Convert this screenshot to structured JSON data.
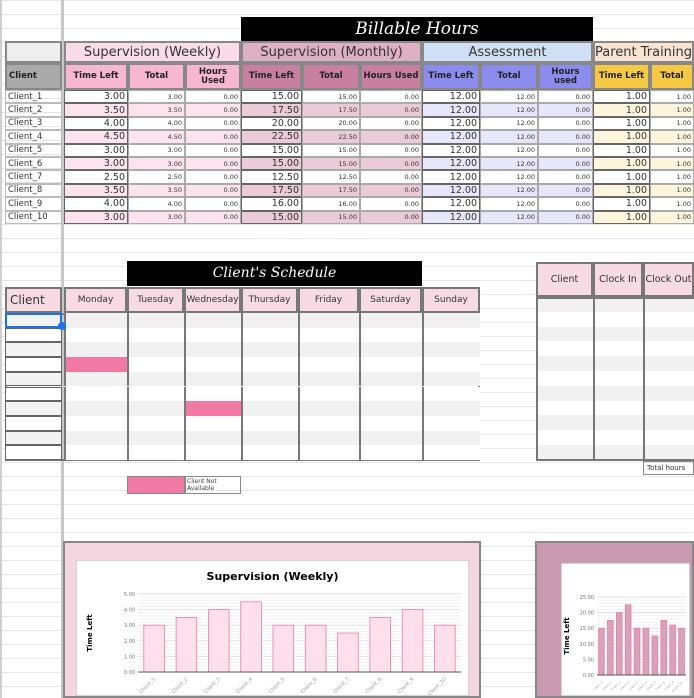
{
  "billable": {
    "title": "Billable Hours",
    "client_header": "Client",
    "groups": [
      {
        "name": "Supervision (Weekly)",
        "cols": [
          "Time Left",
          "Total",
          "Hours Used"
        ],
        "head": "#fadbe8",
        "sub": "#f7b7d0",
        "rowA": "#ffffff",
        "rowB": "#fde3ee",
        "time_left": [
          "3.00",
          "3.50",
          "4.00",
          "4.50",
          "3.00",
          "3.00",
          "2.50",
          "3.50",
          "4.00",
          "3.00"
        ],
        "total": [
          "3.00",
          "3.50",
          "4.00",
          "4.50",
          "3.00",
          "3.00",
          "2.50",
          "3.50",
          "4.00",
          "3.00"
        ],
        "used": [
          "0.00",
          "0.00",
          "0.00",
          "0.00",
          "0.00",
          "0.00",
          "0.00",
          "0.00",
          "0.00",
          "0.00"
        ]
      },
      {
        "name": "Supervision (Monthly)",
        "cols": [
          "Time Left",
          "Total",
          "Hours Used"
        ],
        "head": "#ddb1c3",
        "sub": "#c7809f",
        "rowA": "#ffffff",
        "rowB": "#ebcbd7",
        "time_left": [
          "15.00",
          "17.50",
          "20.00",
          "22.50",
          "15.00",
          "15.00",
          "12.50",
          "17.50",
          "16.00",
          "15.00"
        ],
        "total": [
          "15.00",
          "17.50",
          "20.00",
          "22.50",
          "15.00",
          "15.00",
          "12.50",
          "17.50",
          "16.00",
          "15.00"
        ],
        "used": [
          "0.00",
          "0.00",
          "0.00",
          "0.00",
          "0.00",
          "0.00",
          "0.00",
          "0.00",
          "0.00",
          "0.00"
        ]
      },
      {
        "name": "Assessment",
        "cols": [
          "Time Left",
          "Total",
          "Hours used"
        ],
        "head": "#cfe0f5",
        "sub": "#8c8cef",
        "rowA": "#ffffff",
        "rowB": "#e7e6fb",
        "time_left": [
          "12.00",
          "12.00",
          "12.00",
          "12.00",
          "12.00",
          "12.00",
          "12.00",
          "12.00",
          "12.00",
          "12.00"
        ],
        "total": [
          "12.00",
          "12.00",
          "12.00",
          "12.00",
          "12.00",
          "12.00",
          "12.00",
          "12.00",
          "12.00",
          "12.00"
        ],
        "used": [
          "0.00",
          "0.00",
          "0.00",
          "0.00",
          "0.00",
          "0.00",
          "0.00",
          "0.00",
          "0.00",
          "0.00"
        ]
      },
      {
        "name": "Parent Training",
        "cols": [
          "Time Left",
          "Total"
        ],
        "head": "#fbe3d2",
        "sub": "#f6c945",
        "rowA": "#ffffff",
        "rowB": "#fdf6dc",
        "time_left": [
          "1.00",
          "1.00",
          "1.00",
          "1.00",
          "1.00",
          "1.00",
          "1.00",
          "1.00",
          "1.00",
          "1.00"
        ],
        "total": [
          "1.00",
          "1.00",
          "1.00",
          "1.00",
          "1.00",
          "1.00",
          "1.00",
          "1.00",
          "1.00",
          "1.00"
        ]
      }
    ],
    "clients": [
      "Client_1",
      "Client_2",
      "Client_3",
      "Client_4",
      "Client_5",
      "Client_6",
      "Client_7",
      "Client_8",
      "Client_9",
      "Client_10"
    ]
  },
  "schedule": {
    "title": "Client's Schedule",
    "client_header": "Client",
    "days": [
      "Monday",
      "Tuesday",
      "Wednesday",
      "Thursday",
      "Friday",
      "Saturday",
      "Sunday"
    ],
    "unavailable": [
      {
        "day": "Monday",
        "row": 3
      },
      {
        "day": "Wednesday",
        "row": 6
      }
    ],
    "unavailable_color": "#f07aa3",
    "legend_label": "Client Not Available"
  },
  "clock": {
    "headers": [
      "Client",
      "Clock In",
      "Clock Out"
    ],
    "total_label": "Total hours"
  },
  "chart_data": [
    {
      "type": "bar",
      "title": "Supervision (Weekly)",
      "ylabel": "Time Left",
      "xlabel": "",
      "categories": [
        "Client_1",
        "Client_2",
        "Client_3",
        "Client_4",
        "Client_5",
        "Client_6",
        "Client_7",
        "Client_8",
        "Client_9",
        "Client_10"
      ],
      "values": [
        3.0,
        3.5,
        4.0,
        4.5,
        3.0,
        3.0,
        2.5,
        3.5,
        4.0,
        3.0
      ],
      "ylim": [
        0,
        5
      ],
      "yticks": [
        "0.00",
        "1.00",
        "2.00",
        "3.00",
        "4.00",
        "5.00"
      ],
      "color": "#fde0ec",
      "grid": true
    },
    {
      "type": "bar",
      "title": "",
      "ylabel": "Time Left",
      "xlabel": "",
      "categories": [
        "Client_1",
        "Client_2",
        "Client_3",
        "Client_4",
        "Client_5",
        "Client_6",
        "Client_7",
        "Client_8",
        "Client_9",
        "Client_10"
      ],
      "values": [
        15.0,
        17.5,
        20.0,
        22.5,
        15.0,
        15.0,
        12.5,
        17.5,
        16.0,
        15.0
      ],
      "ylim": [
        0,
        25
      ],
      "yticks": [
        "0.00",
        "5.00",
        "10.00",
        "15.00",
        "20.00",
        "25.00"
      ],
      "color": "#d7a3ba",
      "grid": true
    }
  ]
}
